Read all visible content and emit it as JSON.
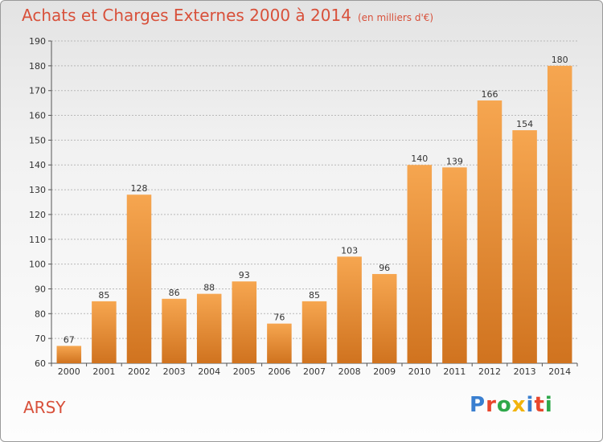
{
  "header": {
    "title": "Achats et Charges Externes 2000 à 2014",
    "unit": "(en milliers d'€)"
  },
  "footer": {
    "commune": "ARSY",
    "logo": "Proxiti",
    "logo_colors": [
      "#3a7fd0",
      "#e8462c",
      "#2ea84a",
      "#f2b40c",
      "#3a7fd0",
      "#e8462c",
      "#2ea84a"
    ]
  },
  "colors": {
    "bar_light": "#f6a650",
    "bar_dark": "#d0731f",
    "grid": "#b8b8b8",
    "text": "#333333"
  },
  "chart_data": {
    "type": "bar",
    "title": "Achats et Charges Externes 2000 à 2014",
    "subtitle": "(en milliers d'€)",
    "categories": [
      "2000",
      "2001",
      "2002",
      "2003",
      "2004",
      "2005",
      "2006",
      "2007",
      "2008",
      "2009",
      "2010",
      "2011",
      "2012",
      "2013",
      "2014"
    ],
    "values": [
      67,
      85,
      128,
      86,
      88,
      93,
      76,
      85,
      103,
      96,
      140,
      139,
      166,
      154,
      180
    ],
    "ylim": [
      60,
      190
    ],
    "yticks": [
      60,
      70,
      80,
      90,
      100,
      110,
      120,
      130,
      140,
      150,
      160,
      170,
      180,
      190
    ],
    "grid": true,
    "data_labels": true,
    "xlabel": "",
    "ylabel": ""
  }
}
